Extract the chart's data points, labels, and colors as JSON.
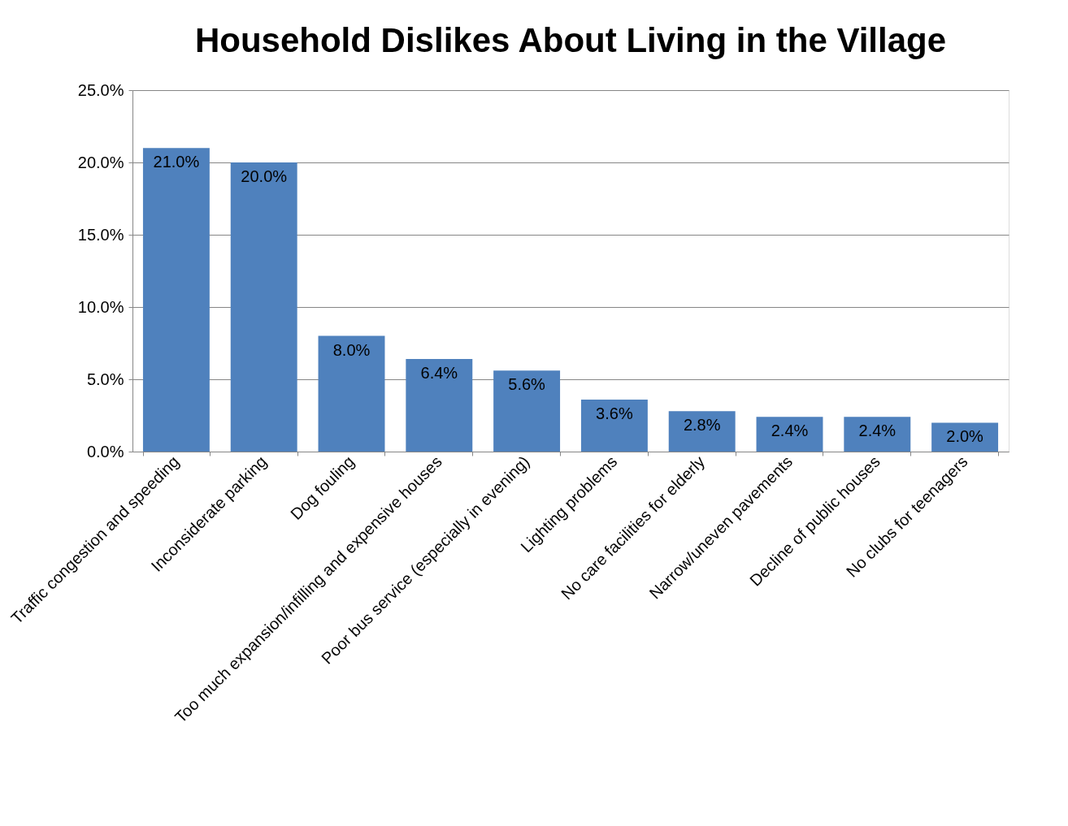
{
  "chart_data": {
    "type": "bar",
    "title": "Household Dislikes About Living in the Village",
    "categories": [
      "Traffic congestion and speeding",
      "Inconsiderate parking",
      "Dog fouling",
      "Too much expansion/infilling and expensive houses",
      "Poor bus service (especially in evening)",
      "Lighting problems",
      "No care facilities for elderly",
      "Narrow/uneven pavements",
      "Decline of public houses",
      "No clubs for teenagers"
    ],
    "values": [
      21.0,
      20.0,
      8.0,
      6.4,
      5.6,
      3.6,
      2.8,
      2.4,
      2.4,
      2.0
    ],
    "value_labels": [
      "21.0%",
      "20.0%",
      "8.0%",
      "6.4%",
      "5.6%",
      "3.6%",
      "2.8%",
      "2.4%",
      "2.4%",
      "2.0%"
    ],
    "color": "#4f81bd",
    "ylim": [
      0,
      25
    ],
    "yticks": [
      {
        "value": 0,
        "label": "0.0%"
      },
      {
        "value": 5,
        "label": "5.0%"
      },
      {
        "value": 10,
        "label": "10.0%"
      },
      {
        "value": 15,
        "label": "15.0%"
      },
      {
        "value": 20,
        "label": "20.0%"
      },
      {
        "value": 25,
        "label": "25.0%"
      }
    ],
    "grid": "y"
  }
}
